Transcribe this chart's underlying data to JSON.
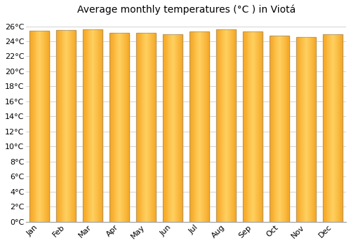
{
  "title": "Average monthly temperatures (°C ) in Viotá",
  "months": [
    "Jan",
    "Feb",
    "Mar",
    "Apr",
    "May",
    "Jun",
    "Jul",
    "Aug",
    "Sep",
    "Oct",
    "Nov",
    "Dec"
  ],
  "values": [
    25.4,
    25.5,
    25.6,
    25.1,
    25.1,
    24.9,
    25.3,
    25.6,
    25.3,
    24.7,
    24.6,
    24.9
  ],
  "bar_color_left": "#F5A623",
  "bar_color_center": "#FFD060",
  "bar_color_right": "#F5A623",
  "bar_edge_color": "#888888",
  "background_color": "#FFFFFF",
  "plot_bg_color": "#FFFFFF",
  "grid_color": "#CCCCCC",
  "ylim": [
    0,
    27
  ],
  "yticks": [
    0,
    2,
    4,
    6,
    8,
    10,
    12,
    14,
    16,
    18,
    20,
    22,
    24,
    26
  ],
  "title_fontsize": 10,
  "tick_fontsize": 8,
  "bar_width": 0.75
}
